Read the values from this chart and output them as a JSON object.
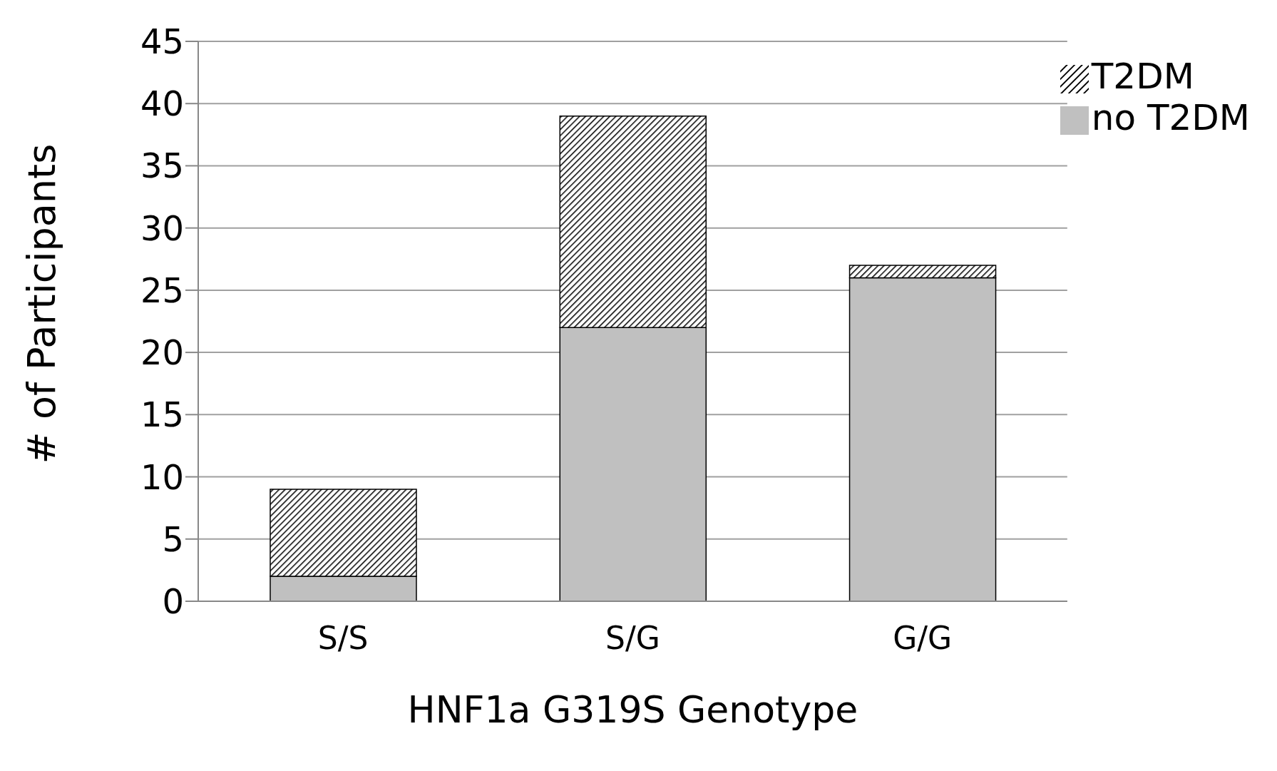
{
  "chart_data": {
    "type": "bar",
    "xlabel": "HNF1a G319S Genotype",
    "ylabel": "# of Participants",
    "categories": [
      "S/S",
      "S/G",
      "G/G"
    ],
    "stacked": true,
    "series": [
      {
        "name": "no T2DM",
        "color": "#c0c0c0",
        "values": [
          2,
          22,
          26
        ]
      },
      {
        "name": "T2DM",
        "color": "#000000",
        "values": [
          7,
          17,
          1
        ]
      }
    ],
    "ylim": [
      0,
      45
    ],
    "yticks": [
      0,
      5,
      10,
      15,
      20,
      25,
      30,
      35,
      40,
      45
    ],
    "grid": "y",
    "legend": "top right"
  }
}
